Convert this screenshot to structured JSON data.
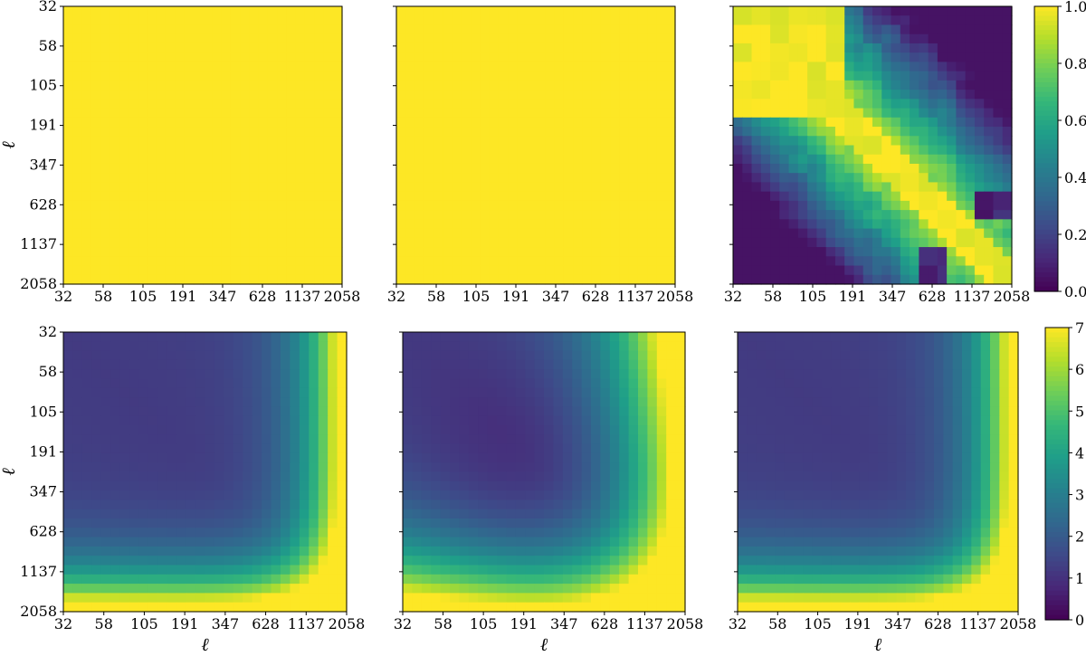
{
  "chart_data": [
    {
      "type": "heatmap",
      "panel": "top-left",
      "pattern": "uniform",
      "value": 1.0,
      "x_ticklabels": [
        "32",
        "58",
        "105",
        "191",
        "347",
        "628",
        "1137",
        "2058"
      ],
      "y_ticklabels": [
        "32",
        "58",
        "105",
        "191",
        "347",
        "628",
        "1137",
        "2058"
      ],
      "xlabel": "",
      "ylabel": "ℓ",
      "clim": [
        0,
        1
      ]
    },
    {
      "type": "heatmap",
      "panel": "top-middle",
      "pattern": "uniform",
      "value": 1.0,
      "x_ticklabels": [
        "32",
        "58",
        "105",
        "191",
        "347",
        "628",
        "1137",
        "2058"
      ],
      "y_ticklabels": [],
      "xlabel": "",
      "ylabel": "",
      "clim": [
        0,
        1
      ]
    },
    {
      "type": "heatmap",
      "panel": "top-right",
      "pattern": "correlation",
      "x_ticklabels": [
        "32",
        "58",
        "105",
        "191",
        "347",
        "628",
        "1137",
        "2058"
      ],
      "y_ticklabels": [],
      "xlabel": "",
      "ylabel": "",
      "clim": [
        0,
        1
      ],
      "colorbar": {
        "ticks": [
          "0.0",
          "0.2",
          "0.4",
          "0.6",
          "0.8",
          "1.0"
        ]
      }
    },
    {
      "type": "heatmap",
      "panel": "bottom-left",
      "pattern": "ratio-a",
      "x_ticklabels": [
        "32",
        "58",
        "105",
        "191",
        "347",
        "628",
        "1137",
        "2058"
      ],
      "y_ticklabels": [
        "32",
        "58",
        "105",
        "191",
        "347",
        "628",
        "1137",
        "2058"
      ],
      "xlabel": "ℓ",
      "ylabel": "ℓ",
      "clim": [
        0,
        7
      ]
    },
    {
      "type": "heatmap",
      "panel": "bottom-middle",
      "pattern": "ratio-b",
      "x_ticklabels": [
        "32",
        "58",
        "105",
        "191",
        "347",
        "628",
        "1137",
        "2058"
      ],
      "y_ticklabels": [],
      "xlabel": "ℓ",
      "ylabel": "",
      "clim": [
        0,
        7
      ]
    },
    {
      "type": "heatmap",
      "panel": "bottom-right",
      "pattern": "ratio-a",
      "x_ticklabels": [
        "32",
        "58",
        "105",
        "191",
        "347",
        "628",
        "1137",
        "2058"
      ],
      "y_ticklabels": [],
      "xlabel": "ℓ",
      "ylabel": "",
      "clim": [
        0,
        7
      ],
      "colorbar": {
        "ticks": [
          "0",
          "1",
          "2",
          "3",
          "4",
          "5",
          "6",
          "7"
        ]
      }
    }
  ],
  "colormap": {
    "name": "viridis",
    "stops": [
      "#440154",
      "#482878",
      "#3e4a89",
      "#31688e",
      "#26828e",
      "#1f9e89",
      "#35b779",
      "#6ece58",
      "#b5de2b",
      "#fde725"
    ]
  }
}
